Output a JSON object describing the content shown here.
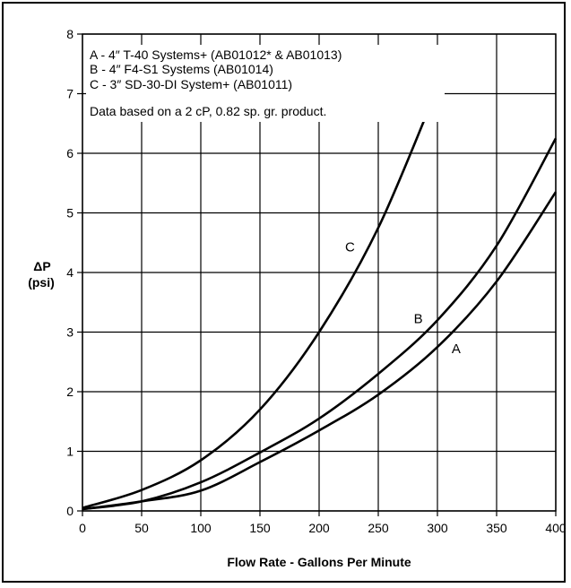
{
  "chart_data": {
    "type": "line",
    "xlabel": "Flow Rate - Gallons Per Minute",
    "ylabel": "ΔP",
    "ylabel_unit": "(psi)",
    "xlim": [
      0,
      400
    ],
    "ylim": [
      0,
      8
    ],
    "x_ticks": [
      "0",
      "50",
      "100",
      "150",
      "200",
      "250",
      "300",
      "350",
      "400"
    ],
    "y_ticks": [
      "0",
      "1",
      "2",
      "3",
      "4",
      "5",
      "6",
      "7",
      "8"
    ],
    "grid": true,
    "legend_lines": [
      "A - 4″ T-40 Systems+ (AB01012* & AB01013)",
      "B - 4″ F4-S1 Systems (AB01014)",
      "C - 3″ SD-30-DI System+ (AB01011)",
      "Data based on a 2 cP, 0.82 sp. gr. product."
    ],
    "legend_position": "top-left",
    "series": [
      {
        "name": "A",
        "label_at": [
          312,
          2.65
        ],
        "x": [
          0,
          50,
          100,
          150,
          200,
          250,
          300,
          350,
          400
        ],
        "y": [
          0.03,
          0.16,
          0.34,
          0.82,
          1.35,
          1.95,
          2.75,
          3.85,
          5.35
        ]
      },
      {
        "name": "B",
        "label_at": [
          280,
          3.15
        ],
        "x": [
          0,
          50,
          100,
          150,
          200,
          250,
          300,
          350,
          400
        ],
        "y": [
          0.03,
          0.16,
          0.48,
          0.98,
          1.55,
          2.3,
          3.2,
          4.45,
          6.25
        ]
      },
      {
        "name": "C",
        "label_at": [
          222,
          4.35
        ],
        "x": [
          0,
          50,
          100,
          150,
          200,
          250,
          300
        ],
        "y": [
          0.05,
          0.35,
          0.85,
          1.7,
          3.0,
          4.75,
          7.1
        ]
      }
    ]
  }
}
